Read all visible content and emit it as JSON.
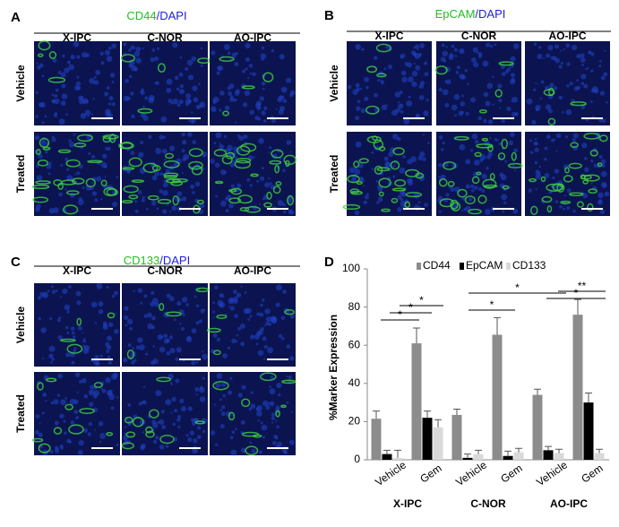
{
  "panels": [
    {
      "letter": "A",
      "marker": "CD44",
      "counterstain": "/DAPI",
      "columns": [
        "X-IPC",
        "C-NOR",
        "AO-IPC"
      ],
      "rows": [
        "Vehicle",
        "Treated"
      ]
    },
    {
      "letter": "B",
      "marker": "EpCAM",
      "counterstain": "/DAPI",
      "columns": [
        "X-IPC",
        "C-NOR",
        "AO-IPC"
      ],
      "rows": [
        "Vehicle",
        "Treated"
      ]
    },
    {
      "letter": "C",
      "marker": "CD133",
      "counterstain": "/DAPI",
      "columns": [
        "X-IPC",
        "C-NOR",
        "AO-IPC"
      ],
      "rows": [
        "Vehicle",
        "Treated"
      ]
    }
  ],
  "chart_data": {
    "type": "bar",
    "letter": "D",
    "ylabel": "%Marker Expression",
    "categories": [
      "Vehicle",
      "Gem",
      "Vehicle",
      "Gem",
      "Vehicle",
      "Gem"
    ],
    "groups": [
      "X-IPC",
      "C-NOR",
      "AO-IPC"
    ],
    "series": [
      {
        "name": "CD44",
        "color": "#8c8c8c",
        "values": [
          21.5,
          61,
          23.5,
          65.5,
          34,
          76
        ],
        "errors": [
          4,
          8,
          3,
          9,
          3,
          8
        ]
      },
      {
        "name": "EpCAM",
        "color": "#000000",
        "values": [
          3,
          22,
          1,
          2,
          5,
          30
        ],
        "errors": [
          2,
          3.5,
          2,
          2.5,
          2,
          5
        ]
      },
      {
        "name": "CD133",
        "color": "#d9d9d9",
        "values": [
          1,
          17,
          3,
          4,
          3.5,
          3.5
        ],
        "errors": [
          4,
          4,
          2,
          2,
          2,
          2
        ]
      }
    ],
    "annotations": [
      "*",
      "*",
      "*",
      "*",
      "*",
      "*",
      "**"
    ],
    "ylim": [
      0,
      100
    ],
    "yticks": [
      0,
      20,
      40,
      60,
      80,
      100
    ]
  }
}
